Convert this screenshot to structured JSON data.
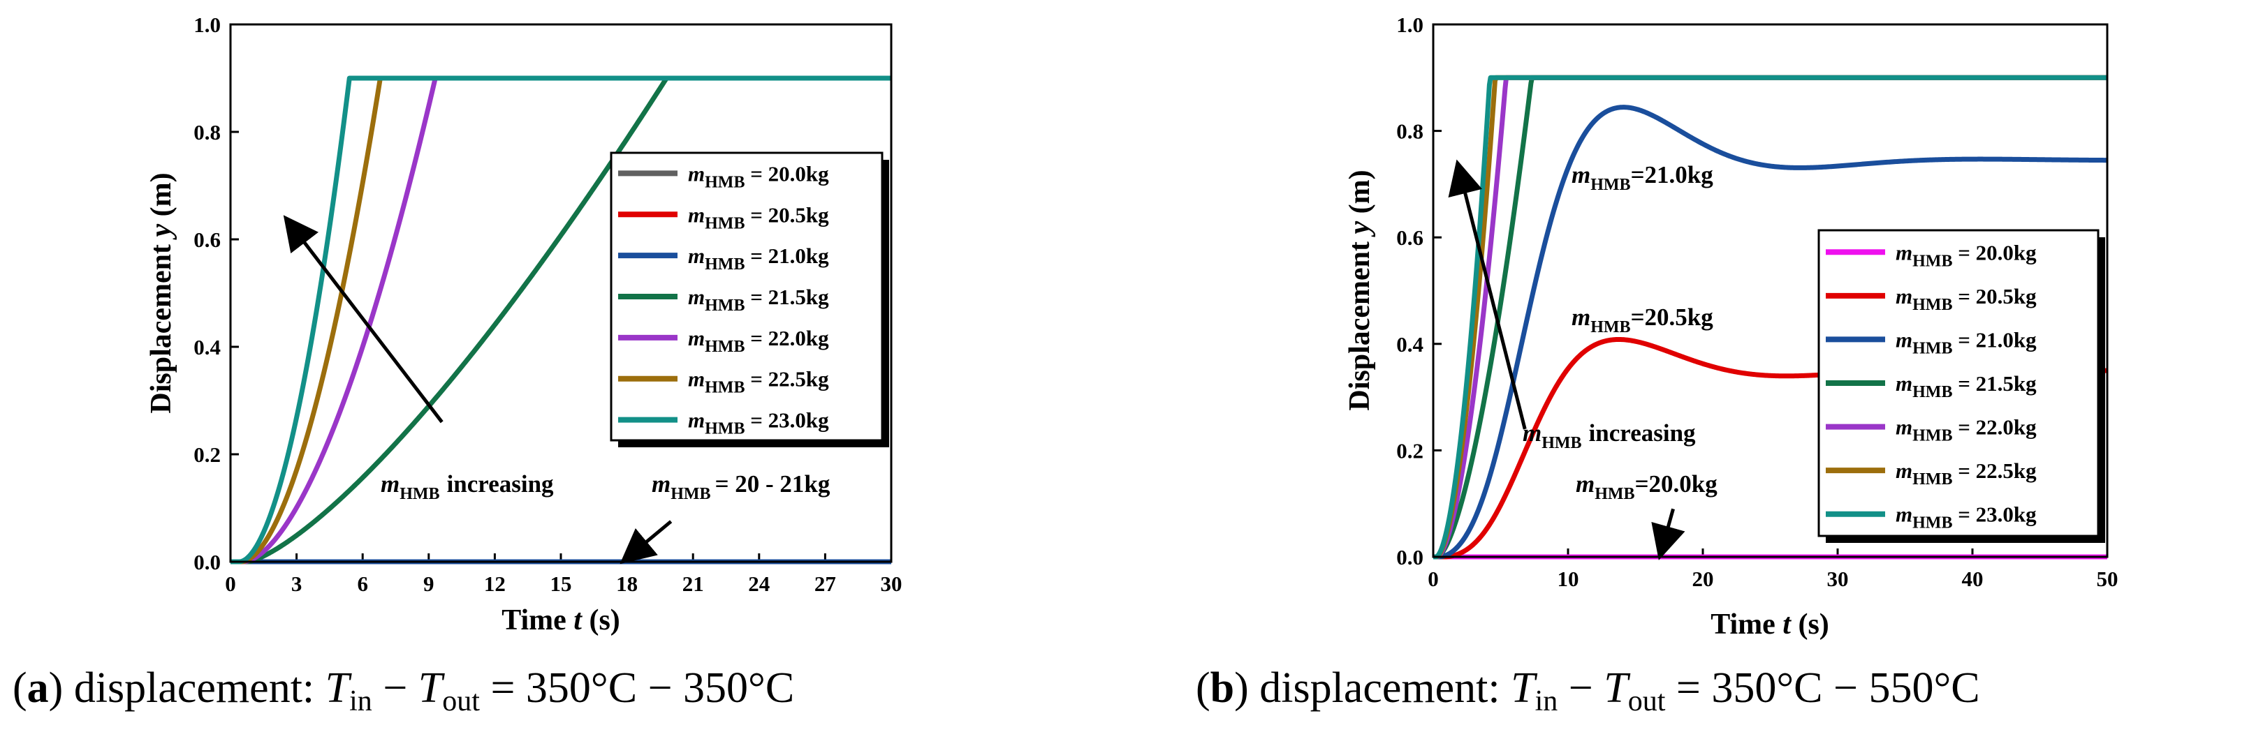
{
  "chart_data": [
    {
      "type": "line",
      "panel": "a",
      "caption": {
        "label": "a",
        "text": "displacement:",
        "t_in": "350°C",
        "t_out": "350°C"
      },
      "xlabel": "Time t (s)",
      "ylabel": "Displacement y (m)",
      "xlim": [
        0,
        30
      ],
      "ylim": [
        0,
        1.0
      ],
      "xticks": [
        0,
        3,
        6,
        9,
        12,
        15,
        18,
        21,
        24,
        27,
        30
      ],
      "yticks": [
        0.0,
        0.2,
        0.4,
        0.6,
        0.8,
        1.0
      ],
      "legend_position": "right",
      "series": [
        {
          "name": "20.0kg",
          "color": "#606060",
          "start": 0,
          "t_end": 30,
          "p": 1,
          "ceiling": 0.9,
          "reach": 0
        },
        {
          "name": "20.5kg",
          "color": "#e00000",
          "start": 0,
          "t_end": 30,
          "p": 1,
          "ceiling": 0.9,
          "reach": 0
        },
        {
          "name": "21.0kg",
          "color": "#1a4e9c",
          "start": 0,
          "t_end": 30,
          "p": 1,
          "ceiling": 0.9,
          "reach": 0
        },
        {
          "name": "21.5kg",
          "color": "#127348",
          "start": 0.8,
          "t_end": 19.8,
          "p": 1.35,
          "ceiling": 0.9,
          "reach": 1
        },
        {
          "name": "22.0kg",
          "color": "#9a36c8",
          "start": 0.6,
          "t_end": 9.3,
          "p": 1.7,
          "ceiling": 0.9,
          "reach": 1
        },
        {
          "name": "22.5kg",
          "color": "#9c6e0c",
          "start": 0.5,
          "t_end": 6.8,
          "p": 1.8,
          "ceiling": 0.9,
          "reach": 1
        },
        {
          "name": "23.0kg",
          "color": "#129088",
          "start": 0.4,
          "t_end": 5.4,
          "p": 1.85,
          "ceiling": 0.9,
          "reach": 1
        }
      ],
      "annotations": [
        {
          "id": "inc",
          "text": "increasing",
          "tail": [
            9.6,
            0.26
          ],
          "head": [
            2.5,
            0.64
          ]
        },
        {
          "id": "range",
          "text": "= 20 - 21kg",
          "tail": [
            20.0,
            0.075
          ],
          "head": [
            17.8,
            0.0
          ]
        }
      ]
    },
    {
      "type": "line",
      "panel": "b",
      "caption": {
        "label": "b",
        "text": "displacement:",
        "t_in": "350°C",
        "t_out": "550°C"
      },
      "xlabel": "Time t (s)",
      "ylabel": "Displacement y (m)",
      "xlim": [
        0,
        50
      ],
      "ylim": [
        0,
        1.0
      ],
      "xticks": [
        0,
        10,
        20,
        30,
        40,
        50
      ],
      "yticks": [
        0.0,
        0.2,
        0.4,
        0.6,
        0.8,
        1.0
      ],
      "legend_position": "lower-right",
      "series": [
        {
          "name": "20.0kg",
          "color": "#ee10ee",
          "kind": "flat",
          "value": 0.0
        },
        {
          "name": "20.5kg",
          "color": "#e00000",
          "kind": "response",
          "start": 0.8,
          "ss": 0.35,
          "peak": 0.41,
          "tpk": 13.5,
          "decay": 9
        },
        {
          "name": "21.0kg",
          "color": "#1a4e9c",
          "kind": "response",
          "start": 0.4,
          "ss": 0.745,
          "peak": 0.848,
          "tpk": 13.8,
          "decay": 9
        },
        {
          "name": "21.5kg",
          "color": "#127348",
          "kind": "ramp",
          "start": 0.3,
          "t_end": 7.3,
          "p": 1.6,
          "ceiling": 0.9
        },
        {
          "name": "22.0kg",
          "color": "#9a36c8",
          "kind": "ramp",
          "start": 0.3,
          "t_end": 5.4,
          "p": 1.7,
          "ceiling": 0.9
        },
        {
          "name": "22.5kg",
          "color": "#9c6e0c",
          "kind": "ramp",
          "start": 0.25,
          "t_end": 4.6,
          "p": 1.75,
          "ceiling": 0.9
        },
        {
          "name": "23.0kg",
          "color": "#129088",
          "kind": "ramp",
          "start": 0.2,
          "t_end": 4.2,
          "p": 1.8,
          "ceiling": 0.9
        }
      ],
      "annotations": [
        {
          "id": "inc",
          "text": "increasing",
          "tail": [
            6.8,
            0.24
          ],
          "head": [
            1.8,
            0.74
          ]
        },
        {
          "id": "l21",
          "text": "=21.0kg",
          "where": [
            10.2,
            0.7
          ]
        },
        {
          "id": "l205",
          "text": "=20.5kg",
          "where": [
            10.2,
            0.43
          ]
        },
        {
          "id": "l20",
          "text": "=20.0kg",
          "tail": [
            17.8,
            0.09
          ],
          "head": [
            16.8,
            0.0
          ]
        }
      ]
    }
  ],
  "legend_prefix": "m",
  "legend_sub": "HMB",
  "legend_eq": " = "
}
